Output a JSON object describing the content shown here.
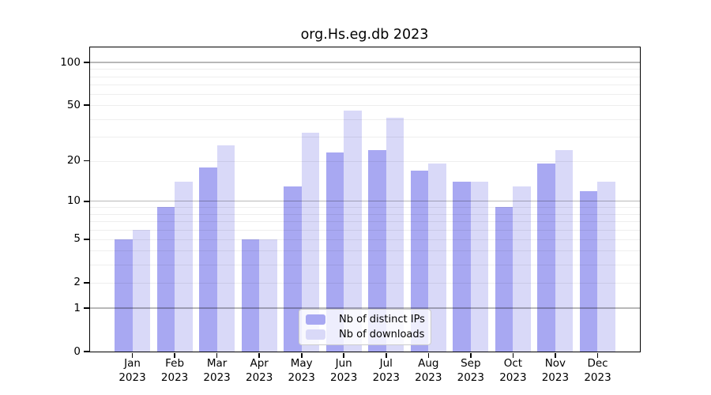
{
  "chart_data": {
    "type": "bar",
    "title": "org.Hs.eg.db 2023",
    "x_categories_line1": [
      "Jan",
      "Feb",
      "Mar",
      "Apr",
      "May",
      "Jun",
      "Jul",
      "Aug",
      "Sep",
      "Oct",
      "Nov",
      "Dec"
    ],
    "x_categories_line2": [
      "2023",
      "2023",
      "2023",
      "2023",
      "2023",
      "2023",
      "2023",
      "2023",
      "2023",
      "2023",
      "2023",
      "2023"
    ],
    "series": [
      {
        "name": "Nb of distinct IPs",
        "color": "#a8a8f2",
        "values": [
          5,
          9,
          18,
          5,
          13,
          23,
          24,
          17,
          14,
          9,
          19,
          12
        ]
      },
      {
        "name": "Nb of downloads",
        "color": "#d9d9f8",
        "values": [
          6,
          14,
          26,
          5,
          32,
          46,
          41,
          19,
          14,
          13,
          24,
          14
        ]
      }
    ],
    "y_scale": "log1p",
    "y_tick_labels": [
      "0",
      "1",
      "2",
      "5",
      "10",
      "20",
      "50",
      "100"
    ],
    "y_tick_values": [
      0,
      1,
      2,
      5,
      10,
      20,
      50,
      100
    ],
    "y_major_gridlines": [
      1,
      10,
      100
    ],
    "y_minor_gridlines": [
      2,
      3,
      4,
      5,
      6,
      7,
      8,
      9,
      20,
      30,
      40,
      50,
      60,
      70,
      80,
      90
    ],
    "ylim": [
      0,
      128
    ],
    "grid": "horizontal",
    "legend_position": "bottom-center-inside"
  },
  "legend": {
    "items": [
      {
        "label": "Nb of distinct IPs",
        "color": "#a8a8f2"
      },
      {
        "label": "Nb of downloads",
        "color": "#d9d9f8"
      }
    ]
  }
}
